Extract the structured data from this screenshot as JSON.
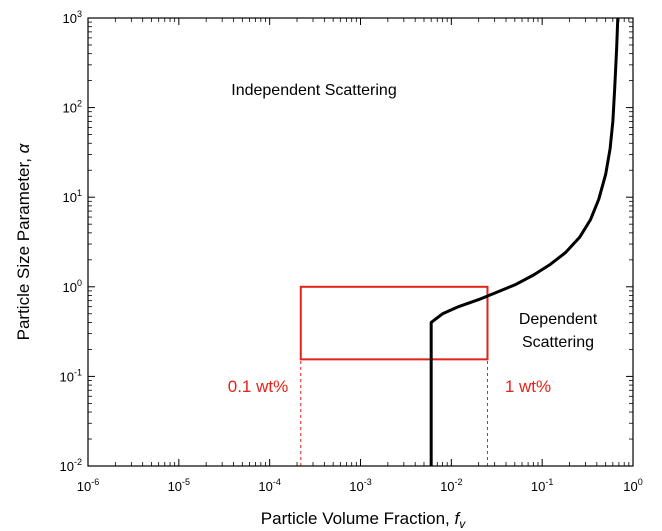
{
  "chart_data": {
    "type": "line",
    "xscale": "log",
    "yscale": "log",
    "xlim": [
      1e-06,
      1
    ],
    "ylim": [
      0.01,
      1000
    ],
    "xlabel": "Particle Volume Fraction, ",
    "xlabel_symbol": "f",
    "xlabel_symbol_sub": "v",
    "ylabel": "Particle Size Parameter, ",
    "ylabel_symbol": "α",
    "x_tick_mantissa": "10",
    "x_tick_exponents": [
      "-6",
      "-5",
      "-4",
      "-3",
      "-2",
      "-1",
      "0"
    ],
    "y_tick_mantissa": "10",
    "y_tick_exponents": [
      "-2",
      "-1",
      "0",
      "1",
      "2",
      "3"
    ],
    "grid": false,
    "series": [
      {
        "color": "#000000",
        "points": [
          [
            0.006,
            0.01
          ],
          [
            0.006,
            0.4
          ],
          [
            0.008,
            0.5
          ],
          [
            0.012,
            0.6
          ],
          [
            0.02,
            0.72
          ],
          [
            0.03,
            0.85
          ],
          [
            0.05,
            1.05
          ],
          [
            0.08,
            1.35
          ],
          [
            0.12,
            1.75
          ],
          [
            0.18,
            2.4
          ],
          [
            0.26,
            3.6
          ],
          [
            0.34,
            5.6
          ],
          [
            0.42,
            9.5
          ],
          [
            0.5,
            18
          ],
          [
            0.56,
            35
          ],
          [
            0.6,
            70
          ],
          [
            0.63,
            170
          ],
          [
            0.66,
            450
          ],
          [
            0.68,
            1000
          ]
        ]
      }
    ],
    "highlight_box": {
      "x": [
        0.00022,
        0.025
      ],
      "y": [
        0.155,
        1.0
      ],
      "color": "#e2231a"
    },
    "dashed_lines": [
      {
        "x": 0.00022,
        "y": [
          0.01,
          0.155
        ]
      },
      {
        "x": 0.025,
        "y": [
          0.01,
          0.155
        ]
      }
    ],
    "annotations": {
      "independent": "Independent Scattering",
      "dependent_line1": "Dependent",
      "dependent_line2": "Scattering",
      "wt_low": "0.1 wt%",
      "wt_high": "1 wt%"
    }
  }
}
